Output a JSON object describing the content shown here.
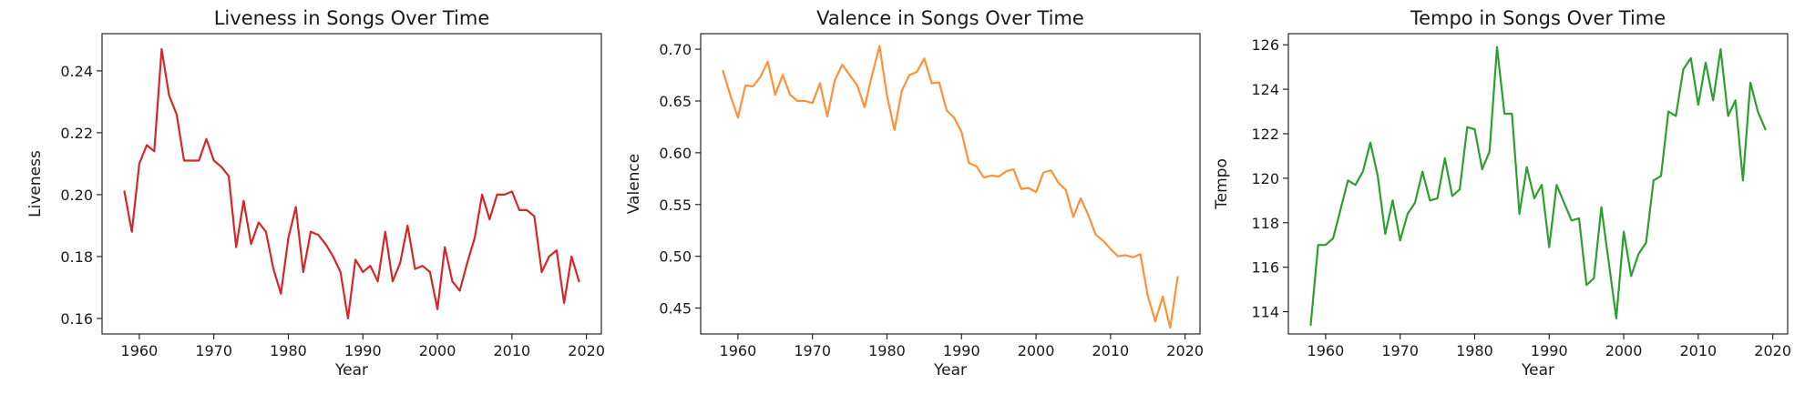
{
  "chart_data": [
    {
      "type": "line",
      "title": "Liveness in Songs Over Time",
      "xlabel": "Year",
      "ylabel": "Liveness",
      "color": "#d62728",
      "xlim": [
        1955,
        2022
      ],
      "ylim": [
        0.155,
        0.252
      ],
      "xticks": [
        1960,
        1970,
        1980,
        1990,
        2000,
        2010,
        2020
      ],
      "yticks": [
        0.16,
        0.18,
        0.2,
        0.22,
        0.24
      ],
      "ytick_labels": [
        "0.16",
        "0.18",
        "0.20",
        "0.22",
        "0.24"
      ],
      "grid": false,
      "x": [
        1958,
        1959,
        1960,
        1961,
        1962,
        1963,
        1964,
        1965,
        1966,
        1967,
        1968,
        1969,
        1970,
        1971,
        1972,
        1973,
        1974,
        1975,
        1976,
        1977,
        1978,
        1979,
        1980,
        1981,
        1982,
        1983,
        1984,
        1985,
        1986,
        1987,
        1988,
        1989,
        1990,
        1991,
        1992,
        1993,
        1994,
        1995,
        1996,
        1997,
        1998,
        1999,
        2000,
        2001,
        2002,
        2003,
        2004,
        2005,
        2006,
        2007,
        2008,
        2009,
        2010,
        2011,
        2012,
        2013,
        2014,
        2015,
        2016,
        2017,
        2018,
        2019
      ],
      "y": [
        0.201,
        0.188,
        0.21,
        0.216,
        0.214,
        0.247,
        0.232,
        0.226,
        0.211,
        0.211,
        0.211,
        0.218,
        0.211,
        0.209,
        0.206,
        0.183,
        0.198,
        0.184,
        0.191,
        0.188,
        0.176,
        0.168,
        0.186,
        0.196,
        0.175,
        0.188,
        0.187,
        0.184,
        0.18,
        0.175,
        0.16,
        0.179,
        0.175,
        0.177,
        0.172,
        0.188,
        0.172,
        0.178,
        0.19,
        0.176,
        0.177,
        0.175,
        0.163,
        0.183,
        0.172,
        0.169,
        0.178,
        0.186,
        0.2,
        0.192,
        0.2,
        0.2,
        0.201,
        0.195,
        0.195,
        0.193,
        0.175,
        0.18,
        0.182,
        0.165,
        0.18,
        0.172
      ]
    },
    {
      "type": "line",
      "title": "Valence in Songs Over Time",
      "xlabel": "Year",
      "ylabel": "Valence",
      "color": "#ff9138",
      "xlim": [
        1955,
        2022
      ],
      "ylim": [
        0.425,
        0.715
      ],
      "xticks": [
        1960,
        1970,
        1980,
        1990,
        2000,
        2010,
        2020
      ],
      "yticks": [
        0.45,
        0.5,
        0.55,
        0.6,
        0.65,
        0.7
      ],
      "ytick_labels": [
        "0.45",
        "0.50",
        "0.55",
        "0.60",
        "0.65",
        "0.70"
      ],
      "grid": false,
      "x": [
        1958,
        1959,
        1960,
        1961,
        1962,
        1963,
        1964,
        1965,
        1966,
        1967,
        1968,
        1969,
        1970,
        1971,
        1972,
        1973,
        1974,
        1975,
        1976,
        1977,
        1978,
        1979,
        1980,
        1981,
        1982,
        1983,
        1984,
        1985,
        1986,
        1987,
        1988,
        1989,
        1990,
        1991,
        1992,
        1993,
        1994,
        1995,
        1996,
        1997,
        1998,
        1999,
        2000,
        2001,
        2002,
        2003,
        2004,
        2005,
        2006,
        2007,
        2008,
        2009,
        2010,
        2011,
        2012,
        2013,
        2014,
        2015,
        2016,
        2017,
        2018,
        2019
      ],
      "y": [
        0.679,
        0.655,
        0.634,
        0.665,
        0.664,
        0.673,
        0.688,
        0.656,
        0.675,
        0.656,
        0.65,
        0.65,
        0.648,
        0.667,
        0.635,
        0.67,
        0.685,
        0.675,
        0.665,
        0.644,
        0.675,
        0.703,
        0.655,
        0.622,
        0.66,
        0.675,
        0.678,
        0.691,
        0.667,
        0.668,
        0.641,
        0.634,
        0.62,
        0.59,
        0.587,
        0.576,
        0.578,
        0.577,
        0.582,
        0.584,
        0.565,
        0.566,
        0.562,
        0.581,
        0.583,
        0.571,
        0.564,
        0.538,
        0.556,
        0.54,
        0.521,
        0.515,
        0.507,
        0.5,
        0.501,
        0.499,
        0.502,
        0.462,
        0.437,
        0.461,
        0.431,
        0.48
      ]
    },
    {
      "type": "line",
      "title": "Tempo in Songs Over Time",
      "xlabel": "Year",
      "ylabel": "Tempo",
      "color": "#2ca02c",
      "xlim": [
        1955,
        2022
      ],
      "ylim": [
        113.0,
        126.5
      ],
      "xticks": [
        1960,
        1970,
        1980,
        1990,
        2000,
        2010,
        2020
      ],
      "yticks": [
        114,
        116,
        118,
        120,
        122,
        124,
        126
      ],
      "ytick_labels": [
        "114",
        "116",
        "118",
        "120",
        "122",
        "124",
        "126"
      ],
      "grid": false,
      "x": [
        1958,
        1959,
        1960,
        1961,
        1962,
        1963,
        1964,
        1965,
        1966,
        1967,
        1968,
        1969,
        1970,
        1971,
        1972,
        1973,
        1974,
        1975,
        1976,
        1977,
        1978,
        1979,
        1980,
        1981,
        1982,
        1983,
        1984,
        1985,
        1986,
        1987,
        1988,
        1989,
        1990,
        1991,
        1992,
        1993,
        1994,
        1995,
        1996,
        1997,
        1998,
        1999,
        2000,
        2001,
        2002,
        2003,
        2004,
        2005,
        2006,
        2007,
        2008,
        2009,
        2010,
        2011,
        2012,
        2013,
        2014,
        2015,
        2016,
        2017,
        2018,
        2019
      ],
      "y": [
        113.4,
        117.0,
        117.0,
        117.3,
        118.6,
        119.9,
        119.7,
        120.3,
        121.6,
        120.1,
        117.5,
        119.0,
        117.2,
        118.4,
        118.9,
        120.3,
        119.0,
        119.1,
        120.9,
        119.2,
        119.5,
        122.3,
        122.2,
        120.4,
        121.2,
        125.9,
        122.9,
        122.9,
        118.4,
        120.5,
        119.1,
        119.7,
        116.9,
        119.7,
        118.9,
        118.1,
        118.2,
        115.2,
        115.5,
        118.7,
        116.2,
        113.7,
        117.6,
        115.6,
        116.6,
        117.1,
        119.9,
        120.1,
        123.0,
        122.8,
        124.9,
        125.4,
        123.3,
        125.2,
        123.5,
        125.8,
        122.8,
        123.5,
        119.9,
        124.3,
        123.0,
        122.2
      ]
    }
  ]
}
